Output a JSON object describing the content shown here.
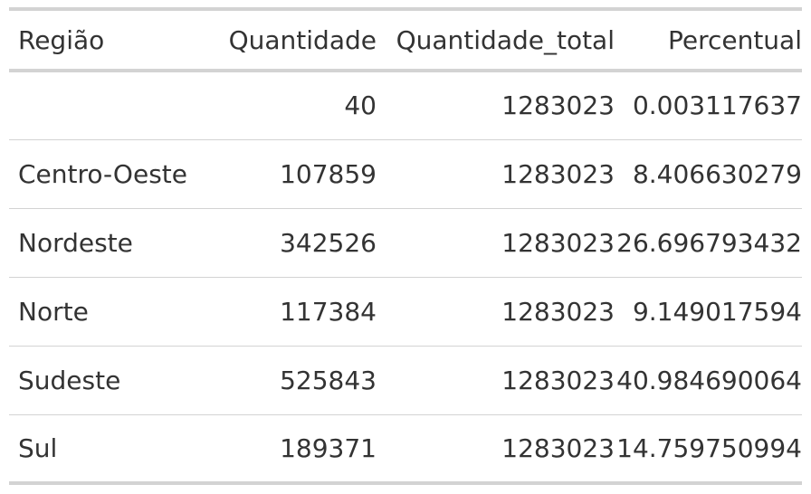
{
  "table": {
    "headers": [
      "Região",
      "Quantidade",
      "Quantidade_total",
      "Percentual"
    ],
    "rows": [
      {
        "regiao": "",
        "quantidade": "40",
        "quantidade_total": "1283023",
        "percentual": "0.003117637"
      },
      {
        "regiao": "Centro-Oeste",
        "quantidade": "107859",
        "quantidade_total": "1283023",
        "percentual": "8.406630279"
      },
      {
        "regiao": "Nordeste",
        "quantidade": "342526",
        "quantidade_total": "1283023",
        "percentual": "26.696793432"
      },
      {
        "regiao": "Norte",
        "quantidade": "117384",
        "quantidade_total": "1283023",
        "percentual": "9.149017594"
      },
      {
        "regiao": "Sudeste",
        "quantidade": "525843",
        "quantidade_total": "1283023",
        "percentual": "40.984690064"
      },
      {
        "regiao": "Sul",
        "quantidade": "189371",
        "quantidade_total": "1283023",
        "percentual": "14.759750994"
      }
    ]
  },
  "colors": {
    "text": "#333333",
    "rule": "#d3d3d3",
    "background": "#ffffff"
  }
}
